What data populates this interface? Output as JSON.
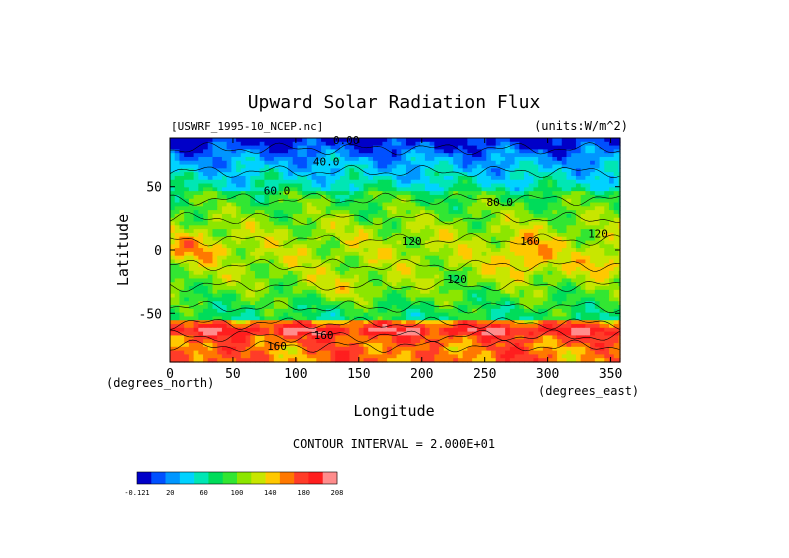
{
  "chart_data": {
    "type": "heatmap",
    "title": "Upward Solar Radiation Flux",
    "file_label": "[USWRF_1995-10_NCEP.nc]",
    "units_label": "(units:W/m^2)",
    "xlabel": "Longitude",
    "ylabel": "Latitude",
    "x_units_label": "(degrees_east)",
    "y_units_label": "(degrees_north)",
    "xlim": [
      0,
      357.5
    ],
    "ylim": [
      -88.5,
      88.5
    ],
    "x_ticks": [
      0,
      50,
      100,
      150,
      200,
      250,
      300,
      350
    ],
    "y_ticks": [
      50,
      0,
      -50
    ],
    "contour_interval_text": "CONTOUR INTERVAL = 2.000E+01",
    "contour_labels": [
      {
        "text": "0.00",
        "lon": 140,
        "lat": 87
      },
      {
        "text": "40.0",
        "lon": 124,
        "lat": 70
      },
      {
        "text": "60.0",
        "lon": 85,
        "lat": 47
      },
      {
        "text": "80.0",
        "lon": 262,
        "lat": 38
      },
      {
        "text": "120",
        "lon": 192,
        "lat": 7
      },
      {
        "text": "120",
        "lon": 228,
        "lat": -23
      },
      {
        "text": "160",
        "lon": 286,
        "lat": 7
      },
      {
        "text": "160",
        "lon": 122,
        "lat": -67
      },
      {
        "text": "160",
        "lon": 85,
        "lat": -76
      },
      {
        "text": "120",
        "lon": 340,
        "lat": 13
      }
    ],
    "colorbar": {
      "colors": [
        "#0000c8",
        "#0050ff",
        "#0096ff",
        "#00d2ff",
        "#00e6b4",
        "#00dc5a",
        "#32e632",
        "#8ce600",
        "#c8e600",
        "#ffc800",
        "#ff7800",
        "#ff3c28",
        "#ff1e1e",
        "#ff8c8c"
      ],
      "tick_labels": [
        "-0.121",
        "20",
        "60",
        "100",
        "140",
        "180",
        "208"
      ]
    }
  }
}
